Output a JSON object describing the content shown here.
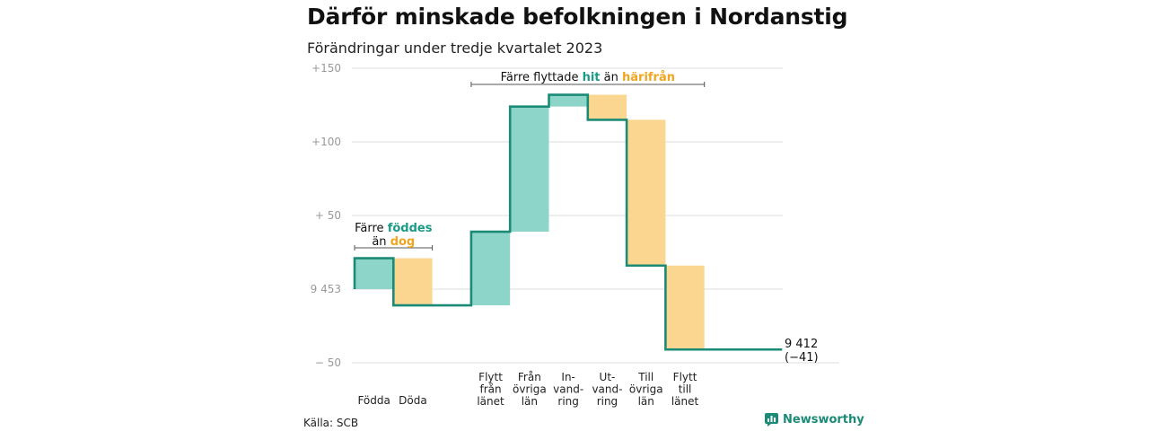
{
  "title": "Därför minskade befolkningen i Nordanstig",
  "subtitle": "Förändringar under tredje kvartalet 2023",
  "source": "Källa: SCB",
  "brand": "Newsworthy",
  "colors": {
    "increase": "#8dd5c9",
    "decrease": "#fad690",
    "line": "#1b8a76",
    "accent_teal": "#1b9a86",
    "accent_orange": "#f0a520"
  },
  "chart_data": {
    "type": "waterfall",
    "start_value": 9453,
    "end_value": 9412,
    "y_axis": {
      "ylim": [
        -55,
        150
      ],
      "ticks": [
        150,
        100,
        50,
        0,
        -50
      ],
      "tick_labels": [
        "+150",
        "+100",
        "+ 50",
        "9 453",
        "− 50"
      ]
    },
    "end_labels": [
      "9 412",
      "(−41)"
    ],
    "steps": [
      {
        "name": "Födda",
        "label_lines": [
          "Födda"
        ],
        "change": 21,
        "kind": "increase"
      },
      {
        "name": "Döda",
        "label_lines": [
          "Döda"
        ],
        "change": -32,
        "kind": "decrease"
      },
      {
        "name": "gap1",
        "label_lines": [],
        "change": 0,
        "kind": "gap"
      },
      {
        "name": "Flytt från länet",
        "label_lines": [
          "Flytt",
          "från",
          "länet"
        ],
        "change": 50,
        "kind": "increase"
      },
      {
        "name": "Från övriga län",
        "label_lines": [
          "Från",
          "övriga",
          "län"
        ],
        "change": 85,
        "kind": "increase"
      },
      {
        "name": "Invandring",
        "label_lines": [
          "In-",
          "vand-",
          "ring"
        ],
        "change": 8,
        "kind": "increase"
      },
      {
        "name": "Utvandring",
        "label_lines": [
          "Ut-",
          "vand-",
          "ring"
        ],
        "change": -17,
        "kind": "decrease"
      },
      {
        "name": "Till övriga län",
        "label_lines": [
          "Till",
          "övriga",
          "län"
        ],
        "change": -99,
        "kind": "decrease"
      },
      {
        "name": "Flytt till länet",
        "label_lines": [
          "Flytt",
          "till",
          "länet"
        ],
        "change": -57,
        "kind": "decrease"
      },
      {
        "name": "gap2",
        "label_lines": [],
        "change": 0,
        "kind": "gap"
      },
      {
        "name": "gap3",
        "label_lines": [],
        "change": 0,
        "kind": "gap"
      }
    ],
    "annotations": [
      {
        "lines": [
          [
            {
              "text": "Färre ",
              "tone": "plain"
            },
            {
              "text": "föddes",
              "tone": "teal"
            }
          ],
          [
            {
              "text": "än ",
              "tone": "plain"
            },
            {
              "text": "dog",
              "tone": "orange"
            }
          ]
        ],
        "from_step": 0,
        "to_step": 1,
        "value": 50
      },
      {
        "lines": [
          [
            {
              "text": "Färre flyttade ",
              "tone": "plain"
            },
            {
              "text": "hit",
              "tone": "teal"
            },
            {
              "text": "  än ",
              "tone": "plain"
            },
            {
              "text": "härifrån",
              "tone": "orange"
            }
          ]
        ],
        "from_step": 3,
        "to_step": 8,
        "value": 140
      }
    ]
  }
}
